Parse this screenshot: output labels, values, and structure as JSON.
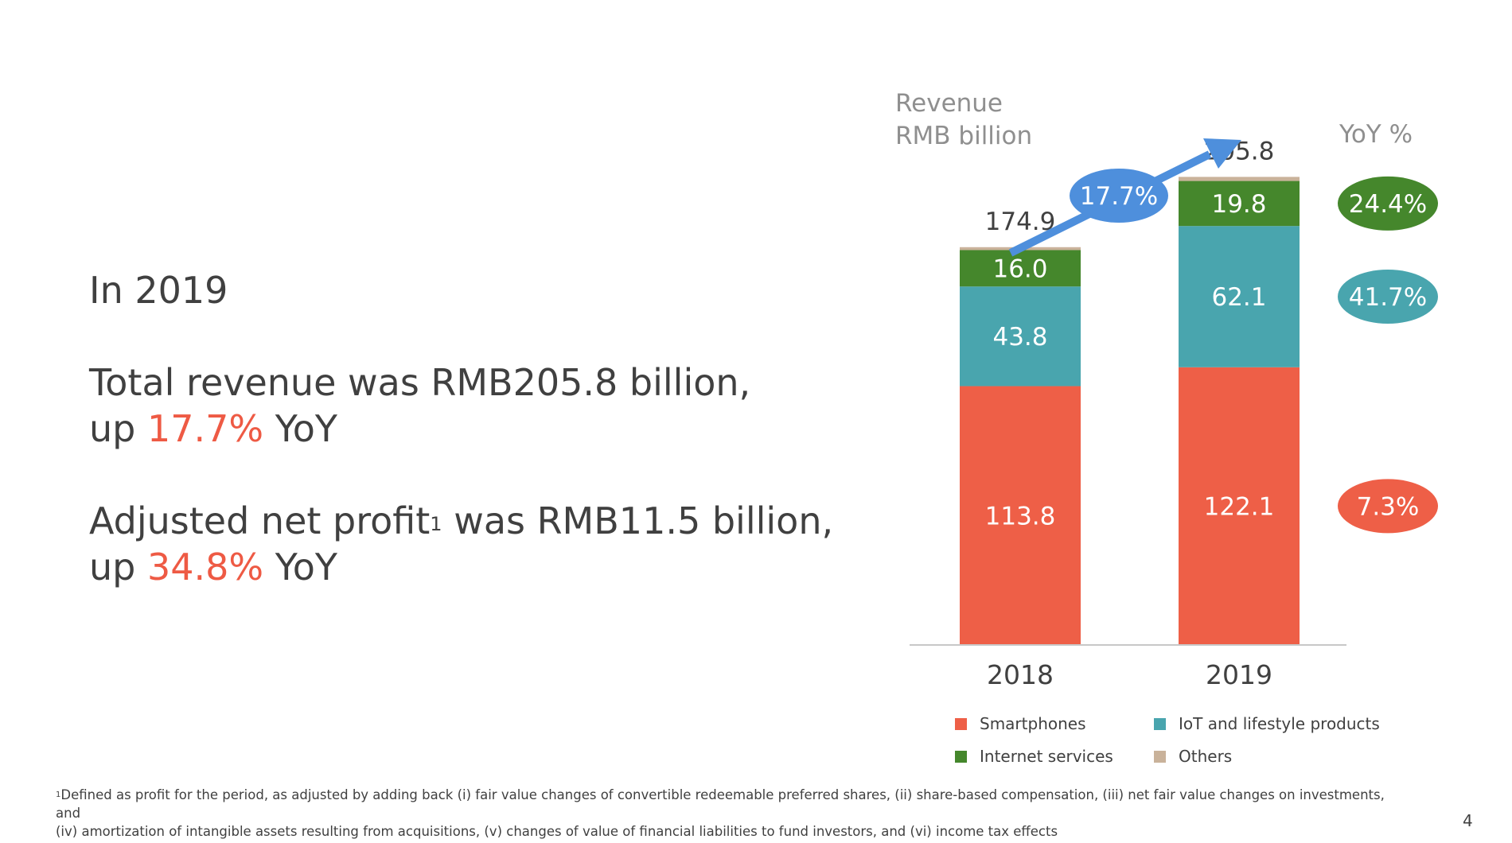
{
  "headline": {
    "year": "In 2019",
    "revenue_prefix": "Total revenue was RMB205.8 billion,",
    "revenue_up": "up ",
    "revenue_pct": "17.7%",
    "revenue_suffix": " YoY",
    "profit_prefix": "Adjusted net profit",
    "profit_sup": "1",
    "profit_after": " was RMB11.5 billion,",
    "profit_up": "up ",
    "profit_pct": "34.8%",
    "profit_suffix": " YoY"
  },
  "footnote": {
    "marker": "1",
    "line1": "Defined as profit for the period, as adjusted by adding back (i) fair value changes of convertible redeemable preferred shares, (ii) share-based compensation, (iii) net fair value changes on investments, and",
    "line2": "(iv) amortization of intangible assets resulting from acquisitions, (v) changes of value of financial liabilities to fund investors, and (vi) income tax effects"
  },
  "page_number": "4",
  "chart_data": {
    "type": "bar",
    "stacked": true,
    "title_line1": "Revenue",
    "title_line2": "RMB billion",
    "yoy_label": "YoY %",
    "growth_label": "17.7%",
    "categories": [
      "2018",
      "2019"
    ],
    "totals": [
      "174.9",
      "205.8"
    ],
    "series": [
      {
        "name": "Smartphones",
        "color": "#ee5f47",
        "values": [
          113.8,
          122.1
        ],
        "labels": [
          "113.8",
          "122.1"
        ],
        "yoy": "7.3%"
      },
      {
        "name": "IoT and lifestyle products",
        "color": "#49a5ae",
        "values": [
          43.8,
          62.1
        ],
        "labels": [
          "43.8",
          "62.1"
        ],
        "yoy": "41.7%"
      },
      {
        "name": "Internet services",
        "color": "#45872c",
        "values": [
          16.0,
          19.8
        ],
        "labels": [
          "16.0",
          "19.8"
        ],
        "yoy": "24.4%"
      },
      {
        "name": "Others",
        "color": "#c9b29a",
        "values": [
          1.3,
          1.8
        ],
        "labels": [
          "",
          ""
        ],
        "yoy": ""
      }
    ],
    "legend": [
      "Smartphones",
      "IoT and lifestyle products",
      "Internet services",
      "Others"
    ],
    "legend_placement": "bottom",
    "grid": false,
    "ylim": [
      0,
      210
    ]
  }
}
